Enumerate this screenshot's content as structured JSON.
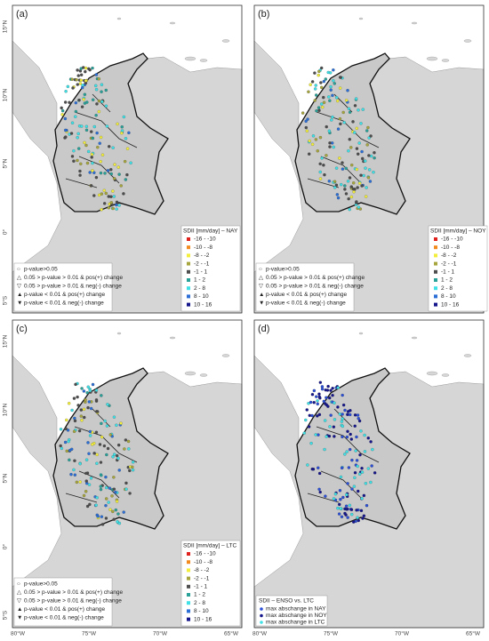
{
  "axes": {
    "lat_labels": [
      "15°N",
      "10°N",
      "5°N",
      "0°",
      "5°S"
    ],
    "lon_labels": [
      "80°W",
      "75°W",
      "70°W",
      "65°W"
    ]
  },
  "symbol_legend": [
    "p-value>0.05",
    "0.05 > p-value > 0.01 & pos(+) change",
    "0.05 > p-value > 0.01 & neg(-) change",
    "p-value < 0.01 & pos(+) change",
    "p-value < 0.01 & neg(-) change"
  ],
  "classes": [
    {
      "label": "-16 - -10",
      "color": "#e0221f"
    },
    {
      "label": "-10 - -8",
      "color": "#f28a1d"
    },
    {
      "label": "-8 - -2",
      "color": "#f2ee3b"
    },
    {
      "label": "-2 - -1",
      "color": "#a7a63e"
    },
    {
      "label": "-1 - 1",
      "color": "#4d4d4d"
    },
    {
      "label": "1 - 2",
      "color": "#2aa198"
    },
    {
      "label": "2 - 8",
      "color": "#3fe0e6"
    },
    {
      "label": "8 - 10",
      "color": "#2b6fd6"
    },
    {
      "label": "10 - 16",
      "color": "#16168c"
    }
  ],
  "panels": [
    {
      "label": "(a)",
      "legend_title": "SDII [mm/day] – NAY"
    },
    {
      "label": "(b)",
      "legend_title": "SDII [mm/day] – NOY"
    },
    {
      "label": "(c)",
      "legend_title": "SDII [mm/day] – LTC"
    },
    {
      "label": "(d)",
      "legend_title": "SDII – ENSO vs. LTC",
      "entries": [
        {
          "label": "max abschange in NAY",
          "color": "#2b4fd6"
        },
        {
          "label": "max abschange in NOY",
          "color": "#16168c"
        },
        {
          "label": "max abschange in LTC",
          "color": "#3fe0e6"
        }
      ]
    }
  ]
}
